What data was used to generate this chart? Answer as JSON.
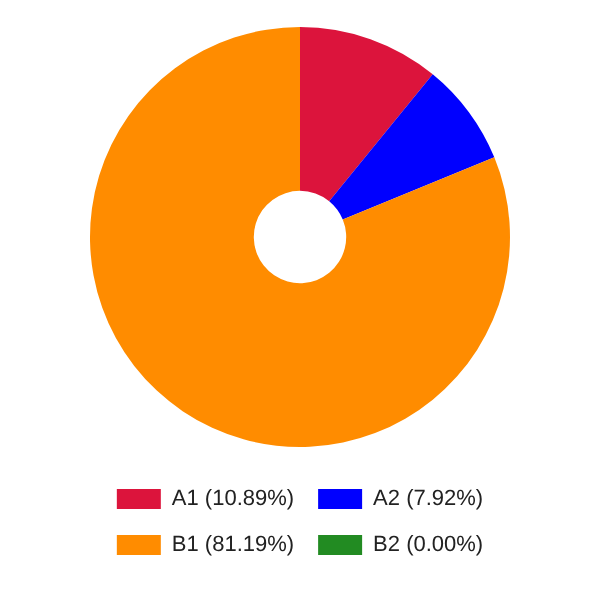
{
  "chart_data": {
    "type": "donut",
    "categories": [
      "A1 (10.89%)",
      "A2 (7.92%)",
      "B1 (81.19%)",
      "B2 (0.00%)"
    ],
    "values": [
      10.89,
      7.92,
      81.19,
      0.0
    ],
    "colors": [
      "#dc143c",
      "#0000ff",
      "#ff8c00",
      "#228b22"
    ],
    "legend": "bottom"
  }
}
